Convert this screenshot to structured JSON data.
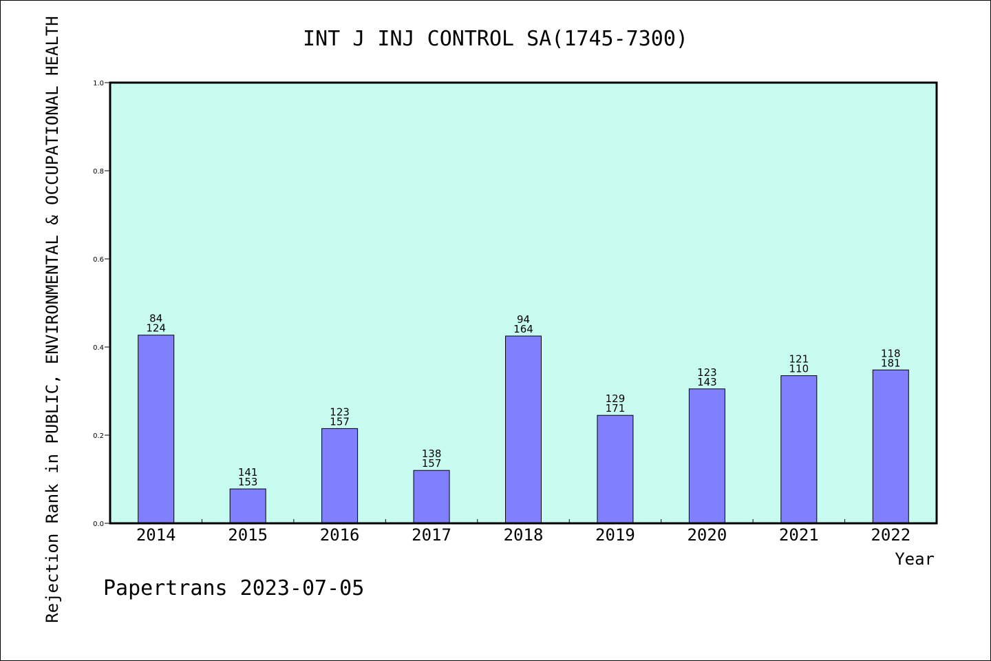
{
  "chart_data": {
    "type": "bar",
    "title": "INT J INJ CONTROL SA(1745-7300)",
    "ylabel": "Rejection Rank in PUBLIC, ENVIRONMENTAL & OCCUPATIONAL HEALTH",
    "xlabel": "Year",
    "ylim": [
      0,
      1.0
    ],
    "yticks": [
      "0.0",
      "0.2",
      "0.4",
      "0.6",
      "0.8",
      "1.0"
    ],
    "categories": [
      "2014",
      "2015",
      "2016",
      "2017",
      "2018",
      "2019",
      "2020",
      "2021",
      "2022"
    ],
    "values": [
      0.427,
      0.078,
      0.215,
      0.12,
      0.425,
      0.245,
      0.305,
      0.335,
      0.348
    ],
    "labels_top": [
      "84",
      "141",
      "123",
      "138",
      "94",
      "129",
      "123",
      "121",
      "118"
    ],
    "labels_bottom": [
      "124",
      "153",
      "157",
      "157",
      "164",
      "171",
      "143",
      "110",
      "181"
    ],
    "grid": false,
    "colors": {
      "bar": "#8080ff",
      "plot_background": "#c8fcf0",
      "axis": "#000000"
    }
  },
  "footer": "Papertrans 2023-07-05"
}
